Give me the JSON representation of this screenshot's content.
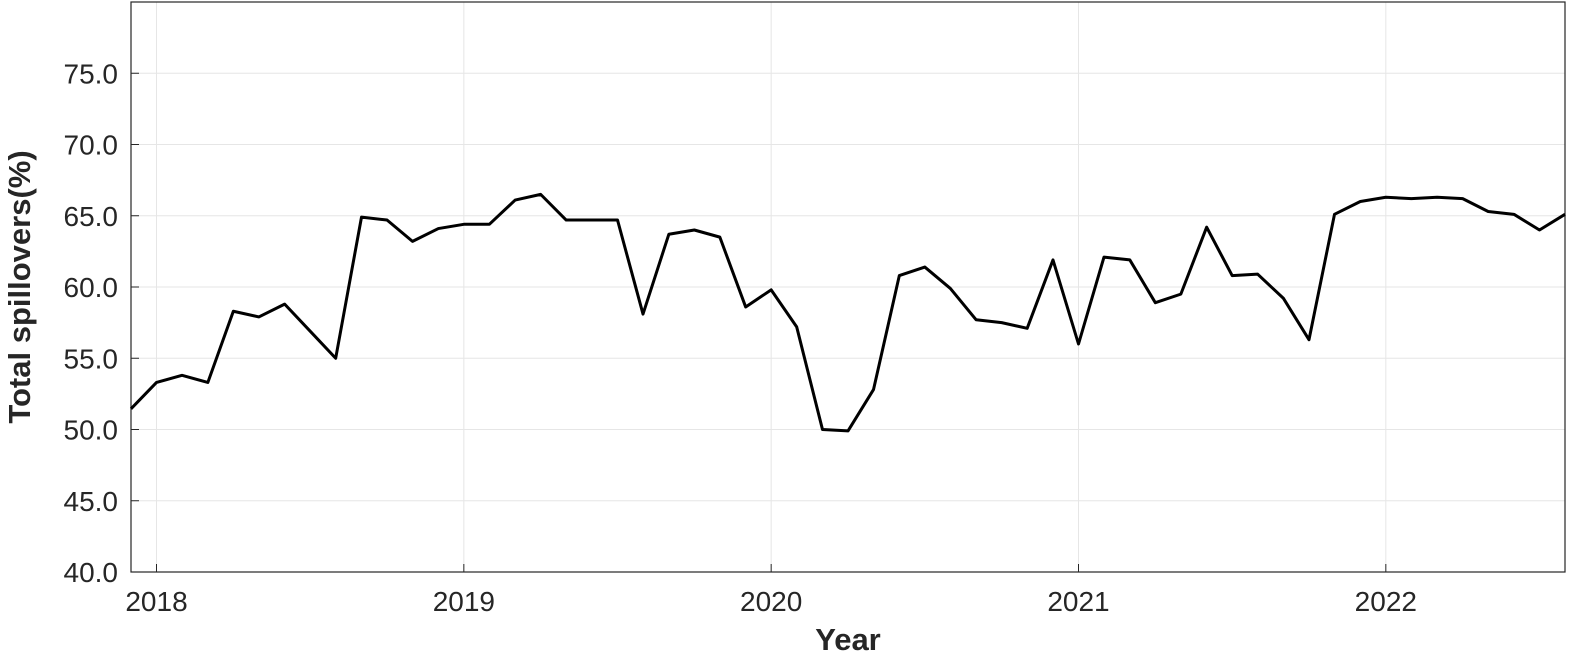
{
  "chart_data": {
    "type": "line",
    "x_label": "Year",
    "y_label": "Total spillovers(%)",
    "x": [
      2017.917,
      2018.0,
      2018.083,
      2018.167,
      2018.25,
      2018.333,
      2018.417,
      2018.5,
      2018.583,
      2018.667,
      2018.75,
      2018.833,
      2018.917,
      2019.0,
      2019.083,
      2019.167,
      2019.25,
      2019.333,
      2019.417,
      2019.5,
      2019.583,
      2019.667,
      2019.75,
      2019.833,
      2019.917,
      2020.0,
      2020.083,
      2020.167,
      2020.25,
      2020.333,
      2020.417,
      2020.5,
      2020.583,
      2020.667,
      2020.75,
      2020.833,
      2020.917,
      2021.0,
      2021.083,
      2021.167,
      2021.25,
      2021.333,
      2021.417,
      2021.5,
      2021.583,
      2021.667,
      2021.75,
      2021.833,
      2021.917,
      2022.0,
      2022.083,
      2022.167,
      2022.25,
      2022.333,
      2022.417,
      2022.5,
      2022.583
    ],
    "values": [
      51.45,
      53.3,
      53.8,
      53.3,
      58.3,
      57.9,
      58.8,
      56.9,
      55.0,
      64.9,
      64.7,
      63.2,
      64.1,
      64.4,
      64.4,
      66.1,
      66.5,
      64.7,
      64.7,
      64.7,
      58.1,
      63.7,
      64.0,
      63.5,
      58.6,
      59.8,
      57.2,
      50.0,
      49.9,
      52.8,
      60.8,
      61.4,
      59.9,
      57.7,
      57.5,
      57.1,
      61.9,
      56.0,
      62.1,
      61.9,
      58.9,
      59.5,
      64.2,
      60.8,
      60.9,
      59.2,
      56.3,
      65.1,
      66.0,
      66.3,
      66.2,
      66.3,
      66.2,
      65.3,
      65.1,
      64.0,
      65.1
    ],
    "color": "#000000",
    "xlim": [
      2017.917,
      2022.583
    ],
    "xticks": [
      2018,
      2019,
      2020,
      2021,
      2022
    ],
    "ylim": [
      40,
      80
    ],
    "yticks": [
      {
        "value": 40,
        "label": "40.0"
      },
      {
        "value": 45,
        "label": "45.0"
      },
      {
        "value": 50,
        "label": "50.0"
      },
      {
        "value": 55,
        "label": "55.0"
      },
      {
        "value": 60,
        "label": "60.0"
      },
      {
        "value": 65,
        "label": "65.0"
      },
      {
        "value": 70,
        "label": "70.0"
      },
      {
        "value": 75,
        "label": "75.0"
      }
    ],
    "grid": true
  }
}
